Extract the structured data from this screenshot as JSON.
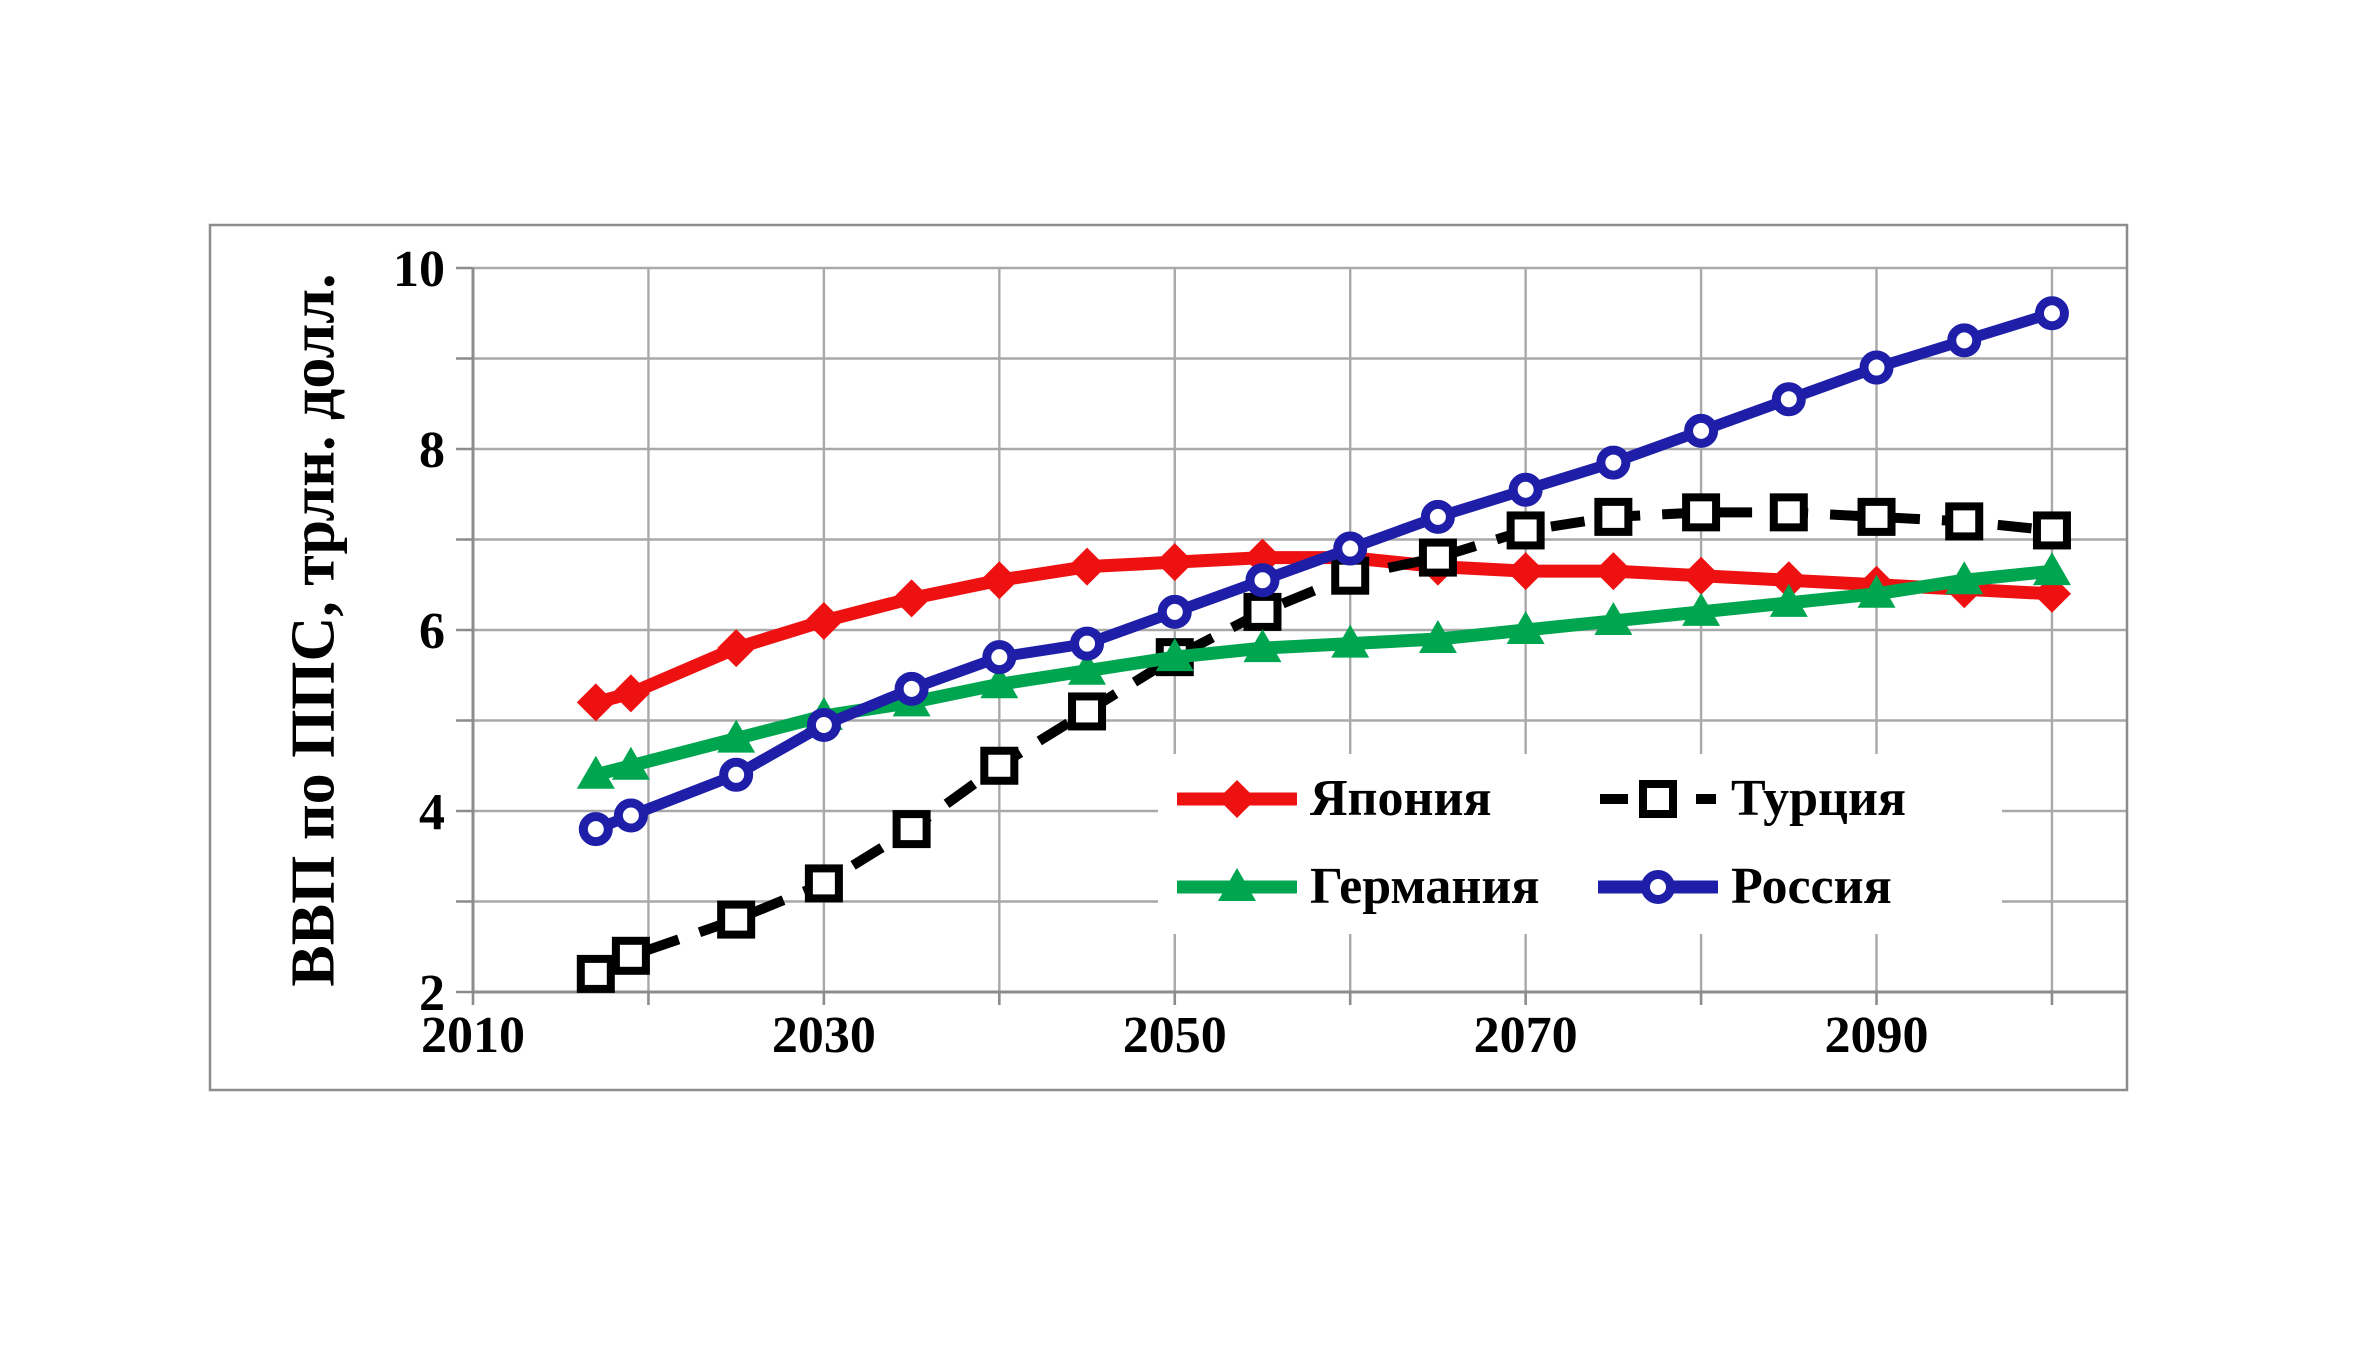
{
  "figure": {
    "background": "#ffffff",
    "frame_color": "#8c8c8c",
    "grid_color": "#a9a9a9",
    "axis_color": "#8c8c8c",
    "text_color": "#000000"
  },
  "chart_data": {
    "type": "line",
    "title": "",
    "xlabel": "",
    "ylabel": "ВВП по ППС, трлн. долл.",
    "xlim": [
      2010,
      2104
    ],
    "ylim": [
      2,
      10
    ],
    "grid": true,
    "x_gridline_step": 10,
    "y_gridline_step": 1,
    "x_tick_labels": [
      "2010",
      "2030",
      "2050",
      "2070",
      "2090"
    ],
    "x_tick_label_years": [
      2010,
      2030,
      2050,
      2070,
      2090
    ],
    "y_tick_labels": [
      "2",
      "4",
      "6",
      "8",
      "10"
    ],
    "y_tick_label_values": [
      2,
      4,
      6,
      8,
      10
    ],
    "legend_position": "inside-bottom-right",
    "x": [
      2017,
      2019,
      2025,
      2030,
      2035,
      2040,
      2045,
      2050,
      2055,
      2060,
      2065,
      2070,
      2075,
      2080,
      2085,
      2090,
      2095,
      2100
    ],
    "series": [
      {
        "name": "Япония",
        "slug": "japan",
        "color": "#ee1111",
        "line_style": "solid",
        "marker": "diamond",
        "values": [
          5.2,
          5.3,
          5.8,
          6.1,
          6.35,
          6.55,
          6.7,
          6.75,
          6.8,
          6.8,
          6.7,
          6.65,
          6.65,
          6.6,
          6.55,
          6.5,
          6.45,
          6.4
        ]
      },
      {
        "name": "Турция",
        "slug": "turkey",
        "color": "#000000",
        "line_style": "dashed",
        "marker": "open-square",
        "values": [
          2.2,
          2.4,
          2.8,
          3.2,
          3.8,
          4.5,
          5.1,
          5.7,
          6.2,
          6.6,
          6.8,
          7.1,
          7.25,
          7.3,
          7.3,
          7.25,
          7.2,
          7.1
        ]
      },
      {
        "name": "Германия",
        "slug": "germany",
        "color": "#00a64f",
        "line_style": "solid",
        "marker": "triangle",
        "values": [
          4.4,
          4.5,
          4.8,
          5.05,
          5.2,
          5.4,
          5.55,
          5.7,
          5.8,
          5.85,
          5.9,
          6.0,
          6.1,
          6.2,
          6.3,
          6.4,
          6.55,
          6.65
        ]
      },
      {
        "name": "Россия",
        "slug": "russia",
        "color": "#1e1ea9",
        "line_style": "solid",
        "marker": "open-circle",
        "values": [
          3.8,
          3.95,
          4.4,
          4.95,
          5.35,
          5.7,
          5.85,
          6.2,
          6.55,
          6.9,
          7.25,
          7.55,
          7.85,
          8.2,
          8.55,
          8.9,
          9.2,
          9.5
        ]
      }
    ],
    "legend_order": [
      0,
      1,
      2,
      3
    ]
  }
}
